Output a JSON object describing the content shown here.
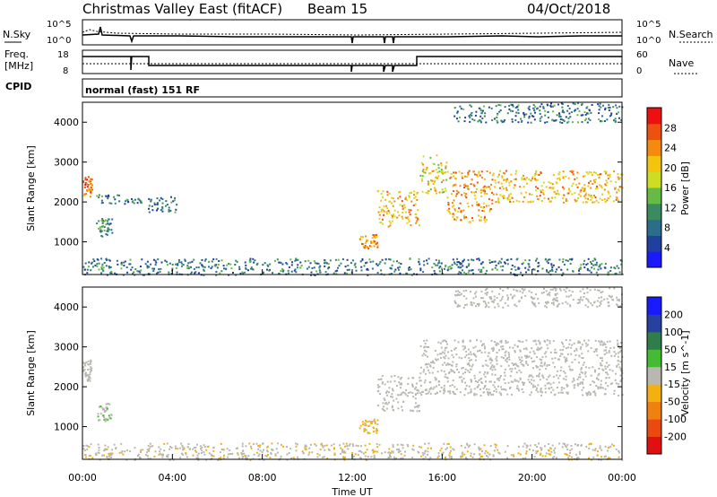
{
  "header": {
    "title": "Christmas Valley East (fitACF)",
    "beam": "Beam 15",
    "date": "04/Oct/2018"
  },
  "summary_panels": {
    "nsky_label": "N.Sky",
    "nsearch_label": "N.Search",
    "freq_label_line1": "Freq.",
    "freq_label_line2": "[MHz]",
    "nave_label": "Nave",
    "cpid_label": "CPID",
    "cpid_text": "normal (fast) 151 RF",
    "noise_ticks": [
      "10^5",
      "10^0"
    ],
    "freq_ticks_left": [
      "18",
      "8"
    ],
    "freq_ticks_right": [
      "60",
      "0"
    ]
  },
  "colors": {
    "power_scale": [
      "#1a1aff",
      "#2040a0",
      "#2a6e8c",
      "#3c8a60",
      "#66bb44",
      "#ccdd22",
      "#f2c40e",
      "#f58a10",
      "#ee5010",
      "#ee1010"
    ],
    "velocity_scale": [
      "#1a1aff",
      "#2840a0",
      "#2e7d4a",
      "#44bb33",
      "#b8b8b0",
      "#f4b010",
      "#f08010",
      "#ea4a10",
      "#e01010"
    ],
    "ground_scatter": "#b9b9b2"
  },
  "chart_data": [
    {
      "type": "heatmap",
      "panel": "power",
      "ylabel": "Slant Range [km]",
      "xlabel": "",
      "x_ticks": [
        "00:00",
        "04:00",
        "08:00",
        "12:00",
        "16:00",
        "20:00",
        "00:00"
      ],
      "xlim_hours": [
        0,
        24
      ],
      "ylim_km": [
        180,
        4500
      ],
      "y_ticks": [
        1000,
        2000,
        3000,
        4000
      ],
      "colorbar": {
        "label": "Power [dB]",
        "ticks": [
          "4",
          "8",
          "12",
          "16",
          "20",
          "24",
          "28"
        ],
        "range": [
          0,
          30
        ]
      },
      "regions": [
        {
          "x": [
            0.0,
            0.4
          ],
          "y": [
            2150,
            2700
          ],
          "value": 24
        },
        {
          "x": [
            0.6,
            1.3
          ],
          "y": [
            1150,
            1600
          ],
          "value": 9
        },
        {
          "x": [
            0.6,
            2.6
          ],
          "y": [
            1950,
            2200
          ],
          "value": 8
        },
        {
          "x": [
            2.9,
            4.2
          ],
          "y": [
            1750,
            2150
          ],
          "value": 8
        },
        {
          "x": [
            12.3,
            13.1
          ],
          "y": [
            850,
            1200
          ],
          "value": 22
        },
        {
          "x": [
            13.1,
            15.0
          ],
          "y": [
            1400,
            2300
          ],
          "value": 20
        },
        {
          "x": [
            15.0,
            16.2
          ],
          "y": [
            2200,
            3200
          ],
          "value": 18
        },
        {
          "x": [
            16.2,
            18.2
          ],
          "y": [
            1500,
            2800
          ],
          "value": 22
        },
        {
          "x": [
            18.2,
            24.0
          ],
          "y": [
            2000,
            2800
          ],
          "value": 20
        },
        {
          "x": [
            16.5,
            24.0
          ],
          "y": [
            4000,
            4500
          ],
          "value": 8
        },
        {
          "x": [
            0.0,
            24.0
          ],
          "y": [
            180,
            600
          ],
          "value": 8
        }
      ]
    },
    {
      "type": "heatmap",
      "panel": "velocity",
      "ylabel": "Slant Range [km]",
      "xlabel": "Time UT",
      "x_ticks": [
        "00:00",
        "04:00",
        "08:00",
        "12:00",
        "16:00",
        "20:00",
        "00:00"
      ],
      "xlim_hours": [
        0,
        24
      ],
      "ylim_km": [
        180,
        4500
      ],
      "y_ticks": [
        1000,
        2000,
        3000,
        4000
      ],
      "colorbar": {
        "label": "Velocity [m s^-1]",
        "ticks": [
          "200",
          "100",
          "50",
          "15",
          "-15",
          "-50",
          "-100",
          "-200"
        ],
        "range": [
          -250,
          250
        ]
      },
      "regions": [
        {
          "x": [
            0.0,
            0.4
          ],
          "y": [
            2150,
            2700
          ],
          "value": 0
        },
        {
          "x": [
            0.6,
            1.3
          ],
          "y": [
            1150,
            1600
          ],
          "value": 20
        },
        {
          "x": [
            12.3,
            13.1
          ],
          "y": [
            850,
            1200
          ],
          "value": -40
        },
        {
          "x": [
            13.1,
            15.0
          ],
          "y": [
            1400,
            2300
          ],
          "value": 0
        },
        {
          "x": [
            15.0,
            24.0
          ],
          "y": [
            1800,
            3200
          ],
          "value": 0
        },
        {
          "x": [
            16.5,
            24.0
          ],
          "y": [
            4000,
            4500
          ],
          "value": 0
        },
        {
          "x": [
            0.0,
            24.0
          ],
          "y": [
            180,
            600
          ],
          "value": -20
        }
      ]
    }
  ]
}
